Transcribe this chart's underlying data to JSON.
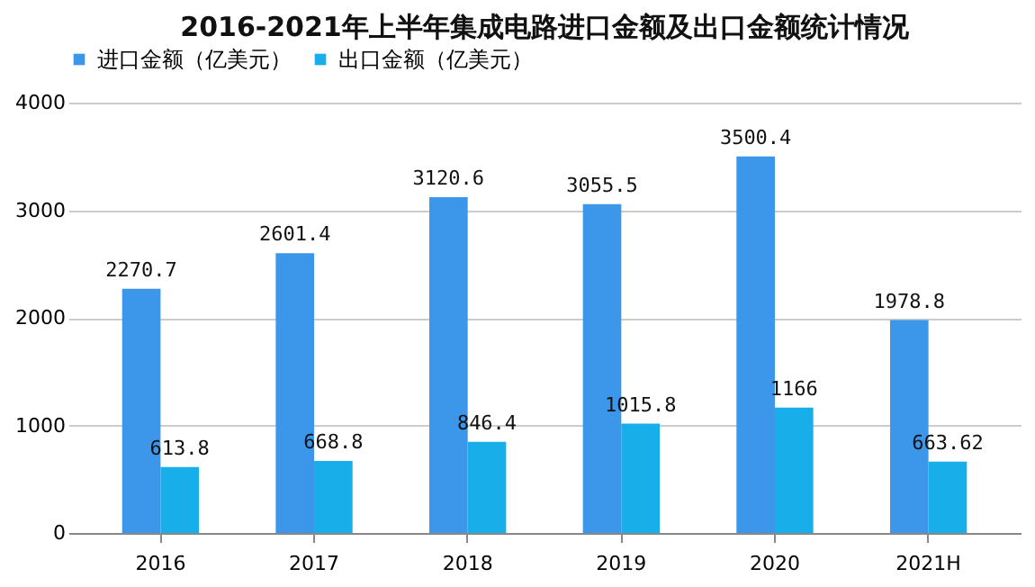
{
  "chart_data": {
    "type": "bar",
    "title": "2016-2021年上半年集成电路进口金额及出口金额统计情况",
    "categories": [
      "2016",
      "2017",
      "2018",
      "2019",
      "2020",
      "2021H"
    ],
    "series": [
      {
        "name": "进口金额（亿美元）",
        "color": "#3c96ea",
        "values": [
          2270.7,
          2601.4,
          3120.6,
          3055.5,
          3500.4,
          1978.8
        ]
      },
      {
        "name": "出口金额（亿美元）",
        "color": "#17aeea",
        "values": [
          613.8,
          668.8,
          846.4,
          1015.8,
          1166,
          663.62
        ]
      }
    ],
    "ylim": [
      0,
      4000
    ],
    "yticks": [
      0,
      1000,
      2000,
      3000,
      4000
    ],
    "grid": "y",
    "legend": "top",
    "data_labels": true
  }
}
